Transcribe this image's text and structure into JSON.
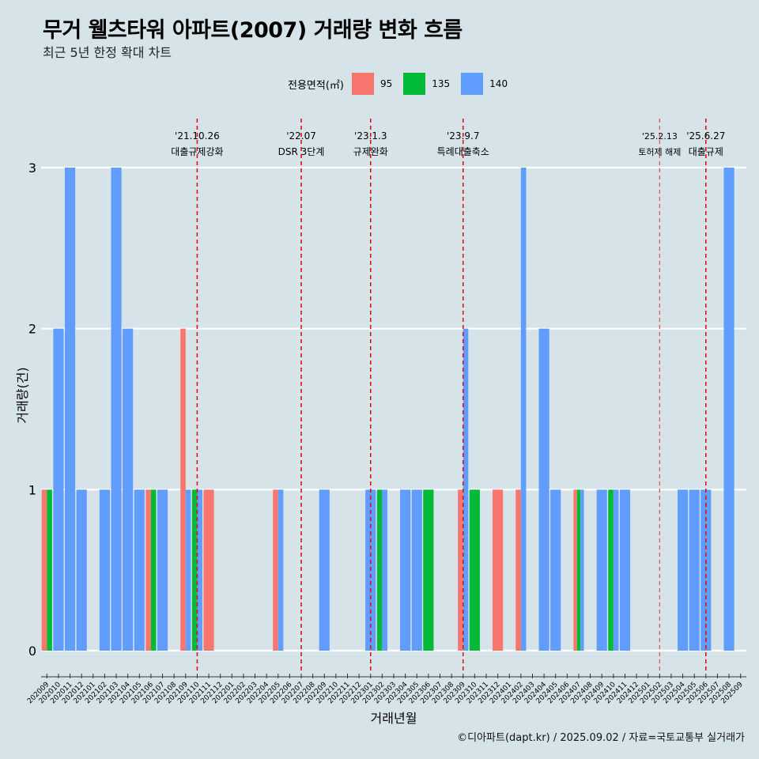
{
  "title": "무거 웰츠타워 아파트(2007) 거래량 변화 흐름",
  "subtitle": "최근 5년 한정 확대 차트",
  "caption": "©디아파트(dapt.kr) / 2025.09.02 / 자료=국토교통부 실거래가",
  "legend": {
    "title": "전용면적(㎡)",
    "items": [
      {
        "label": "95",
        "color": "#f8766d"
      },
      {
        "label": "135",
        "color": "#00ba38"
      },
      {
        "label": "140",
        "color": "#619cff"
      }
    ]
  },
  "chart_data": {
    "type": "bar",
    "xlabel": "거래년월",
    "ylabel": "거래량(건)",
    "ylim": [
      0,
      3
    ],
    "yticks": [
      "0",
      "1",
      "2",
      "3"
    ],
    "grid": "horizontal",
    "legend_position": "top",
    "categories": [
      "202009",
      "202010",
      "202011",
      "202012",
      "202101",
      "202102",
      "202103",
      "202104",
      "202105",
      "202106",
      "202107",
      "202108",
      "202109",
      "202110",
      "202111",
      "202112",
      "202201",
      "202202",
      "202203",
      "202204",
      "202205",
      "202206",
      "202207",
      "202208",
      "202209",
      "202210",
      "202211",
      "202212",
      "202301",
      "202302",
      "202303",
      "202304",
      "202305",
      "202306",
      "202307",
      "202308",
      "202309",
      "202310",
      "202311",
      "202312",
      "202401",
      "202402",
      "202403",
      "202404",
      "202405",
      "202406",
      "202407",
      "202408",
      "202409",
      "202410",
      "202411",
      "202412",
      "202501",
      "202502",
      "202503",
      "202504",
      "202505",
      "202506",
      "202507",
      "202508",
      "202509"
    ],
    "series": [
      {
        "name": "95",
        "color": "#f8766d",
        "values": [
          1,
          0,
          0,
          0,
          0,
          0,
          0,
          0,
          0,
          1,
          0,
          0,
          2,
          0,
          1,
          0,
          0,
          0,
          0,
          0,
          1,
          0,
          0,
          0,
          0,
          0,
          0,
          0,
          0,
          0,
          0,
          0,
          0,
          0,
          0,
          0,
          1,
          0,
          0,
          1,
          0,
          1,
          0,
          0,
          0,
          0,
          1,
          0,
          0,
          0,
          0,
          0,
          0,
          0,
          0,
          0,
          0,
          0,
          0,
          0,
          0
        ]
      },
      {
        "name": "135",
        "color": "#00ba38",
        "values": [
          1,
          0,
          0,
          0,
          0,
          0,
          0,
          0,
          0,
          1,
          0,
          0,
          0,
          1,
          0,
          0,
          0,
          0,
          0,
          0,
          0,
          0,
          0,
          0,
          0,
          0,
          0,
          0,
          0,
          1,
          0,
          0,
          0,
          1,
          0,
          0,
          0,
          1,
          0,
          0,
          0,
          0,
          0,
          0,
          0,
          0,
          1,
          0,
          0,
          1,
          0,
          0,
          0,
          0,
          0,
          0,
          0,
          0,
          0,
          0,
          0
        ]
      },
      {
        "name": "140",
        "color": "#619cff",
        "values": [
          0,
          2,
          3,
          1,
          0,
          1,
          3,
          2,
          1,
          0,
          1,
          0,
          1,
          1,
          0,
          0,
          0,
          0,
          0,
          0,
          1,
          0,
          0,
          0,
          1,
          0,
          0,
          0,
          1,
          1,
          0,
          1,
          1,
          0,
          0,
          0,
          2,
          0,
          0,
          0,
          0,
          3,
          0,
          2,
          1,
          0,
          1,
          0,
          1,
          1,
          1,
          0,
          0,
          0,
          0,
          1,
          1,
          1,
          0,
          3,
          0
        ]
      }
    ],
    "events": [
      {
        "x": "202110",
        "date": "'21.10.26",
        "label": "대출규제강화",
        "small": false
      },
      {
        "x": "202207",
        "date": "'22.07",
        "label": "DSR 3단계",
        "small": false
      },
      {
        "x": "202301",
        "date": "'23.1.3",
        "label": "규제완화",
        "small": false
      },
      {
        "x": "202309",
        "date": "'23.9.7",
        "label": "특례대출축소",
        "small": false
      },
      {
        "x": "202502",
        "date": "'25.2.13",
        "label": "토허제 해제",
        "small": true
      },
      {
        "x": "202506",
        "date": "'25.6.27",
        "label": "대출규제",
        "small": false
      }
    ]
  }
}
